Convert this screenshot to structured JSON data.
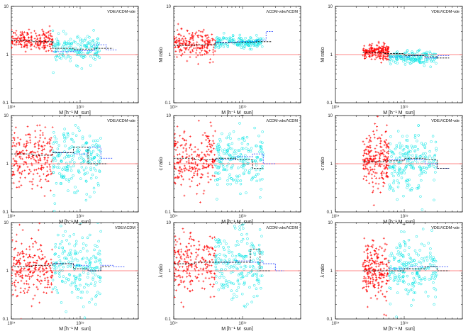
{
  "figure": {
    "colors": {
      "set_a": "#ff0000",
      "set_b": "#00e5e5",
      "ref_line": "#ff6060",
      "median_a": "#000000",
      "median_b": "#1e3cff"
    }
  },
  "chart_data": [
    {
      "type": "scatter",
      "row": 0,
      "col": 0,
      "tag": "VDE/ΛCDM-vde",
      "ylabel": "M ratio",
      "xlabel": "M  [h⁻¹ M_sun]",
      "xscale": "log",
      "yscale": "log",
      "xlim": [
        100000000000000.0,
        7000000000000000.0
      ],
      "ylim": [
        0.1,
        10
      ],
      "ref_y": 1,
      "ytick_labels": [
        "0.1",
        "1",
        "10"
      ],
      "xtick_labels": [
        "10¹⁴",
        "10¹⁵"
      ],
      "series": [
        {
          "color": "#ff0000",
          "marker": "plus",
          "x_range": [
            100000000000000.0,
            400000000000000.0
          ],
          "y_center": 2.0,
          "y_spread": 0.1,
          "n": 200
        },
        {
          "color": "#00e5e5",
          "marker": "circle",
          "x_range": [
            400000000000000.0,
            2000000000000000.0
          ],
          "y_center": 1.3,
          "y_spread": 0.14,
          "n": 160
        }
      ],
      "median_a": {
        "x": [
          100000000000000.0,
          200000000000000.0,
          400000000000000.0,
          800000000000000.0,
          1600000000000000.0,
          3000000000000000.0
        ],
        "y": [
          1.95,
          1.85,
          1.35,
          1.3,
          1.35,
          1.3
        ]
      },
      "median_b": {
        "x": [
          400000000000000.0,
          800000000000000.0,
          1600000000000000.0,
          2400000000000000.0,
          3500000000000000.0
        ],
        "y": [
          1.15,
          1.2,
          1.6,
          1.25,
          1.25
        ]
      }
    },
    {
      "type": "scatter",
      "row": 0,
      "col": 1,
      "tag": "ΛCDM-vde/ΛCDM",
      "ylabel": "M ratio",
      "xlabel": "M  [h⁻¹ M_sun]",
      "xscale": "log",
      "yscale": "log",
      "xlim": [
        100000000000000.0,
        7000000000000000.0
      ],
      "ylim": [
        0.1,
        10
      ],
      "ref_y": 1,
      "ytick_labels": [
        "0.1",
        "1",
        "10"
      ],
      "xtick_labels": [
        "10¹⁴",
        "10¹⁵"
      ],
      "series": [
        {
          "color": "#ff0000",
          "marker": "plus",
          "x_range": [
            100000000000000.0,
            400000000000000.0
          ],
          "y_center": 1.6,
          "y_spread": 0.14,
          "n": 200
        },
        {
          "color": "#00e5e5",
          "marker": "circle",
          "x_range": [
            400000000000000.0,
            2000000000000000.0
          ],
          "y_center": 1.8,
          "y_spread": 0.06,
          "n": 160
        }
      ],
      "median_a": {
        "x": [
          100000000000000.0,
          200000000000000.0,
          400000000000000.0,
          800000000000000.0,
          1600000000000000.0,
          2600000000000000.0
        ],
        "y": [
          1.55,
          1.6,
          1.75,
          1.8,
          1.85,
          1.7
        ]
      },
      "median_b": {
        "x": [
          400000000000000.0,
          800000000000000.0,
          1600000000000000.0,
          2200000000000000.0,
          2800000000000000.0
        ],
        "y": [
          1.8,
          1.85,
          2.0,
          3.0,
          1.7
        ]
      }
    },
    {
      "type": "scatter",
      "row": 0,
      "col": 2,
      "tag": "VDE/ΛCDM-vde",
      "ylabel": "M ratio",
      "xlabel": "M  [h⁻¹ M_sun]",
      "xscale": "log",
      "yscale": "log",
      "xlim": [
        100000000000000.0,
        7000000000000000.0
      ],
      "ylim": [
        0.1,
        10
      ],
      "ref_y": 1,
      "ytick_labels": [
        "0.1",
        "1",
        "10"
      ],
      "xtick_labels": [
        "10¹⁴",
        "10¹⁵"
      ],
      "series": [
        {
          "color": "#ff0000",
          "marker": "plus",
          "x_range": [
            250000000000000.0,
            600000000000000.0
          ],
          "y_center": 1.15,
          "y_spread": 0.08,
          "n": 200
        },
        {
          "color": "#00e5e5",
          "marker": "circle",
          "x_range": [
            600000000000000.0,
            3000000000000000.0
          ],
          "y_center": 0.85,
          "y_spread": 0.07,
          "n": 160
        }
      ],
      "median_a": {
        "x": [
          250000000000000.0,
          500000000000000.0,
          1000000000000000.0,
          2000000000000000.0,
          3000000000000000.0,
          4500000000000000.0
        ],
        "y": [
          1.1,
          1.05,
          0.95,
          0.9,
          0.85,
          0.8
        ]
      },
      "median_b": {
        "x": [
          600000000000000.0,
          1200000000000000.0,
          2000000000000000.0,
          3000000000000000.0,
          4500000000000000.0
        ],
        "y": [
          0.9,
          0.95,
          0.85,
          0.95,
          0.85
        ]
      }
    },
    {
      "type": "scatter",
      "row": 1,
      "col": 0,
      "tag": "VDE/ΛCDM-vde",
      "ylabel": "c ratio",
      "xlabel": "M  [h⁻¹ M_sun]",
      "xscale": "log",
      "yscale": "log",
      "xlim": [
        100000000000000.0,
        7000000000000000.0
      ],
      "ylim": [
        0.1,
        10
      ],
      "ref_y": 1,
      "ytick_labels": [
        "0.1",
        "1",
        "10"
      ],
      "xtick_labels": [
        "10¹⁴",
        "10¹⁵"
      ],
      "series": [
        {
          "color": "#ff0000",
          "marker": "plus",
          "x_range": [
            100000000000000.0,
            400000000000000.0
          ],
          "y_center": 1.3,
          "y_spread": 0.3,
          "n": 220
        },
        {
          "color": "#00e5e5",
          "marker": "circle",
          "x_range": [
            400000000000000.0,
            2000000000000000.0
          ],
          "y_center": 1.2,
          "y_spread": 0.32,
          "n": 200
        }
      ],
      "median_a": {
        "x": [
          100000000000000.0,
          200000000000000.0,
          400000000000000.0,
          800000000000000.0,
          1300000000000000.0,
          1800000000000000.0,
          2500000000000000.0
        ],
        "y": [
          1.6,
          1.5,
          1.7,
          2.2,
          1.0,
          1.0,
          1.0
        ]
      },
      "median_b": {
        "x": [
          400000000000000.0,
          800000000000000.0,
          1300000000000000.0,
          2000000000000000.0,
          3000000000000000.0
        ],
        "y": [
          1.7,
          1.6,
          2.2,
          1.3,
          2.3
        ]
      }
    },
    {
      "type": "scatter",
      "row": 1,
      "col": 1,
      "tag": "ΛCDM-vde/ΛCDM",
      "ylabel": "c ratio",
      "xlabel": "M  [h⁻¹ M_sun]",
      "xscale": "log",
      "yscale": "log",
      "xlim": [
        100000000000000.0,
        7000000000000000.0
      ],
      "ylim": [
        0.1,
        10
      ],
      "ref_y": 1,
      "ytick_labels": [
        "0.1",
        "1",
        "10"
      ],
      "xtick_labels": [
        "10¹⁴",
        "10¹⁵"
      ],
      "series": [
        {
          "color": "#ff0000",
          "marker": "plus",
          "x_range": [
            100000000000000.0,
            400000000000000.0
          ],
          "y_center": 1.2,
          "y_spread": 0.3,
          "n": 220
        },
        {
          "color": "#00e5e5",
          "marker": "circle",
          "x_range": [
            400000000000000.0,
            2000000000000000.0
          ],
          "y_center": 1.1,
          "y_spread": 0.32,
          "n": 200
        }
      ],
      "median_a": {
        "x": [
          100000000000000.0,
          200000000000000.0,
          400000000000000.0,
          800000000000000.0,
          1400000000000000.0,
          2000000000000000.0
        ],
        "y": [
          1.3,
          1.2,
          1.3,
          1.2,
          0.8,
          1.2
        ]
      },
      "median_b": {
        "x": [
          400000000000000.0,
          800000000000000.0,
          1400000000000000.0,
          2000000000000000.0,
          3000000000000000.0
        ],
        "y": [
          1.2,
          1.4,
          1.6,
          1.0,
          2.0
        ]
      }
    },
    {
      "type": "scatter",
      "row": 1,
      "col": 2,
      "tag": "VDE/ΛCDM-vde",
      "ylabel": "c ratio",
      "xlabel": "M  [h⁻¹ M_sun]",
      "xscale": "log",
      "yscale": "log",
      "xlim": [
        100000000000000.0,
        7000000000000000.0
      ],
      "ylim": [
        0.1,
        10
      ],
      "ref_y": 1,
      "ytick_labels": [
        "0.1",
        "1",
        "10"
      ],
      "xtick_labels": [
        "10¹⁴",
        "10¹⁵"
      ],
      "series": [
        {
          "color": "#ff0000",
          "marker": "plus",
          "x_range": [
            250000000000000.0,
            600000000000000.0
          ],
          "y_center": 1.1,
          "y_spread": 0.3,
          "n": 220
        },
        {
          "color": "#00e5e5",
          "marker": "circle",
          "x_range": [
            600000000000000.0,
            3000000000000000.0
          ],
          "y_center": 1.1,
          "y_spread": 0.3,
          "n": 200
        }
      ],
      "median_a": {
        "x": [
          250000000000000.0,
          500000000000000.0,
          1000000000000000.0,
          2000000000000000.0,
          3000000000000000.0,
          4500000000000000.0
        ],
        "y": [
          1.1,
          1.15,
          1.3,
          1.2,
          0.8,
          0.75
        ]
      },
      "median_b": {
        "x": [
          600000000000000.0,
          1200000000000000.0,
          2000000000000000.0,
          3000000000000000.0,
          4500000000000000.0
        ],
        "y": [
          1.2,
          1.2,
          1.0,
          0.8,
          0.6
        ]
      }
    },
    {
      "type": "scatter",
      "row": 2,
      "col": 0,
      "tag": "VDE/ΛCDM",
      "ylabel": "λ ratio",
      "xlabel": "M  [h⁻¹ M_sun]",
      "xscale": "log",
      "yscale": "log",
      "xlim": [
        100000000000000.0,
        7000000000000000.0
      ],
      "ylim": [
        0.1,
        10
      ],
      "ref_y": 1,
      "ytick_labels": [
        "0.1",
        "1",
        "10"
      ],
      "xtick_labels": [
        "10¹⁴",
        "10¹⁵"
      ],
      "series": [
        {
          "color": "#ff0000",
          "marker": "plus",
          "x_range": [
            100000000000000.0,
            400000000000000.0
          ],
          "y_center": 1.2,
          "y_spread": 0.32,
          "n": 220
        },
        {
          "color": "#00e5e5",
          "marker": "circle",
          "x_range": [
            400000000000000.0,
            2000000000000000.0
          ],
          "y_center": 1.2,
          "y_spread": 0.35,
          "n": 200
        }
      ],
      "median_a": {
        "x": [
          100000000000000.0,
          200000000000000.0,
          400000000000000.0,
          800000000000000.0,
          1300000000000000.0,
          2000000000000000.0,
          2800000000000000.0
        ],
        "y": [
          1.2,
          1.3,
          1.4,
          1.1,
          1.0,
          1.2,
          1.0
        ]
      },
      "median_b": {
        "x": [
          400000000000000.0,
          800000000000000.0,
          1300000000000000.0,
          2000000000000000.0,
          3000000000000000.0,
          4500000000000000.0
        ],
        "y": [
          1.4,
          1.3,
          1.0,
          1.3,
          1.2,
          1.2
        ]
      }
    },
    {
      "type": "scatter",
      "row": 2,
      "col": 1,
      "tag": "ΛCDM-vde/ΛCDM",
      "ylabel": "λ ratio",
      "xlabel": "M  [h⁻¹ M_sun]",
      "xscale": "log",
      "yscale": "log",
      "xlim": [
        100000000000000.0,
        7000000000000000.0
      ],
      "ylim": [
        0.1,
        10
      ],
      "ref_y": 1,
      "ytick_labels": [
        "0.1",
        "1",
        "10"
      ],
      "xtick_labels": [
        "10¹⁴",
        "10¹⁵"
      ],
      "series": [
        {
          "color": "#ff0000",
          "marker": "plus",
          "x_range": [
            100000000000000.0,
            400000000000000.0
          ],
          "y_center": 1.4,
          "y_spread": 0.32,
          "n": 220
        },
        {
          "color": "#00e5e5",
          "marker": "circle",
          "x_range": [
            400000000000000.0,
            2000000000000000.0
          ],
          "y_center": 1.3,
          "y_spread": 0.35,
          "n": 200
        }
      ],
      "median_a": {
        "x": [
          100000000000000.0,
          200000000000000.0,
          400000000000000.0,
          800000000000000.0,
          1300000000000000.0,
          1800000000000000.0,
          2500000000000000.0
        ],
        "y": [
          1.4,
          1.5,
          1.5,
          1.5,
          2.8,
          1.0,
          1.3
        ]
      },
      "median_b": {
        "x": [
          400000000000000.0,
          800000000000000.0,
          1300000000000000.0,
          2000000000000000.0,
          3000000000000000.0,
          4000000000000000.0
        ],
        "y": [
          1.5,
          1.6,
          1.5,
          1.4,
          1.0,
          0.7
        ]
      }
    },
    {
      "type": "scatter",
      "row": 2,
      "col": 2,
      "tag": "VDE/ΛCDM-vde",
      "ylabel": "λ ratio",
      "xlabel": "M  [h⁻¹ M_sun]",
      "xscale": "log",
      "yscale": "log",
      "xlim": [
        100000000000000.0,
        7000000000000000.0
      ],
      "ylim": [
        0.1,
        10
      ],
      "ref_y": 1,
      "ytick_labels": [
        "0.1",
        "1",
        "10"
      ],
      "xtick_labels": [
        "10¹⁴",
        "10¹⁵"
      ],
      "series": [
        {
          "color": "#ff0000",
          "marker": "plus",
          "x_range": [
            250000000000000.0,
            600000000000000.0
          ],
          "y_center": 1.0,
          "y_spread": 0.3,
          "n": 220
        },
        {
          "color": "#00e5e5",
          "marker": "circle",
          "x_range": [
            600000000000000.0,
            3000000000000000.0
          ],
          "y_center": 1.1,
          "y_spread": 0.32,
          "n": 200
        }
      ],
      "median_a": {
        "x": [
          250000000000000.0,
          500000000000000.0,
          1000000000000000.0,
          2000000000000000.0,
          3000000000000000.0,
          4500000000000000.0
        ],
        "y": [
          1.0,
          1.0,
          1.1,
          1.2,
          1.0,
          0.8
        ]
      },
      "median_b": {
        "x": [
          600000000000000.0,
          1200000000000000.0,
          2000000000000000.0,
          3000000000000000.0,
          4500000000000000.0
        ],
        "y": [
          1.1,
          1.2,
          1.2,
          1.2,
          1.2
        ]
      }
    }
  ]
}
